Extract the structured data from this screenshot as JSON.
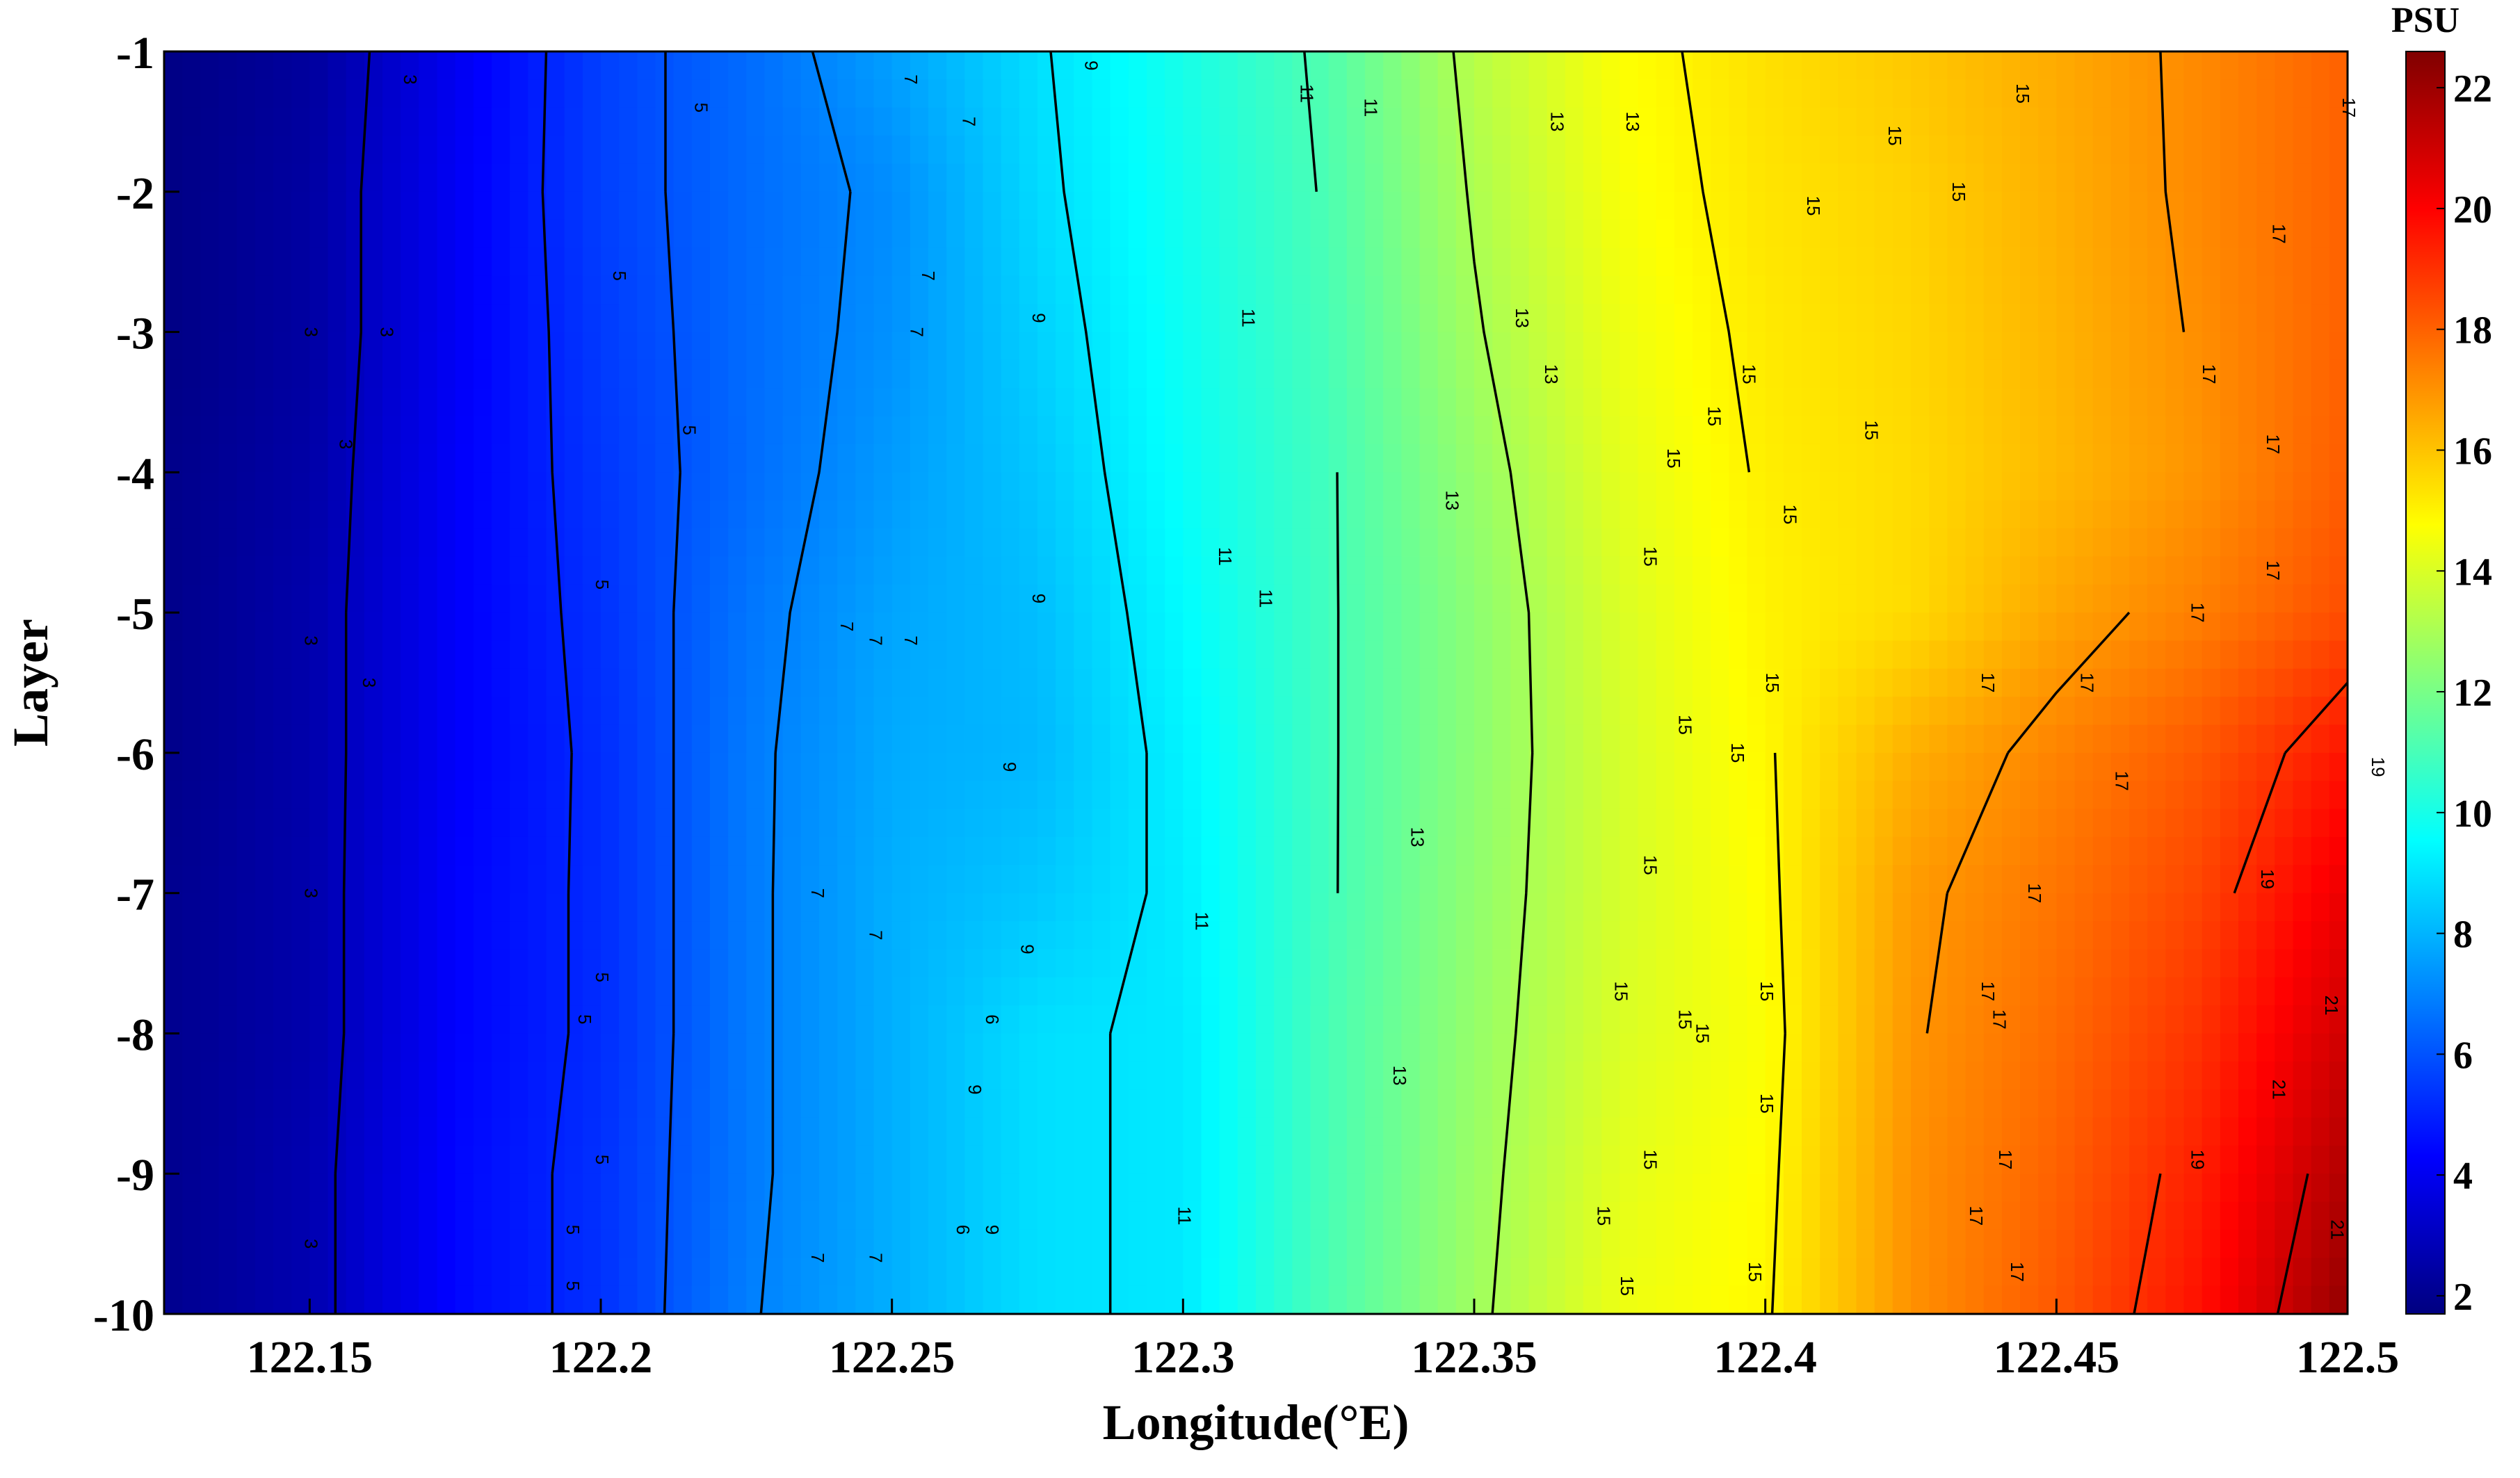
{
  "chart_data": {
    "type": "heatmap",
    "subtype": "filled contour with labeled isolines",
    "title": "",
    "xlabel": "Longitude(°E)",
    "ylabel": "Layer",
    "colorbar_label": "PSU",
    "colormap": "jet",
    "grid": false,
    "xlim": [
      122.125,
      122.5
    ],
    "ylim": [
      -10,
      -1
    ],
    "clim": [
      1.7,
      22.6
    ],
    "x_ticks": [
      122.15,
      122.2,
      122.25,
      122.3,
      122.35,
      122.4,
      122.45,
      122.5
    ],
    "x_tick_labels": [
      "122.15",
      "122.2",
      "122.25",
      "122.3",
      "122.35",
      "122.4",
      "122.45",
      "122.5"
    ],
    "y_ticks": [
      -1,
      -2,
      -3,
      -4,
      -5,
      -6,
      -7,
      -8,
      -9,
      -10
    ],
    "y_tick_labels": [
      "-1",
      "-2",
      "-3",
      "-4",
      "-5",
      "-6",
      "-7",
      "-8",
      "-9",
      "-10"
    ],
    "colorbar_ticks": [
      2,
      4,
      6,
      8,
      10,
      12,
      14,
      16,
      18,
      20,
      22
    ],
    "colorbar_tick_labels": [
      "2",
      "4",
      "6",
      "8",
      "10",
      "12",
      "14",
      "16",
      "18",
      "20",
      "22"
    ],
    "x_grid": [
      122.125,
      122.15,
      122.175,
      122.2,
      122.225,
      122.25,
      122.275,
      122.3,
      122.325,
      122.35,
      122.375,
      122.4,
      122.425,
      122.45,
      122.475,
      122.5
    ],
    "y_grid": [
      -1,
      -2,
      -3,
      -4,
      -5,
      -6,
      -7,
      -8,
      -9,
      -10
    ],
    "values": [
      [
        1.8,
        2.3,
        4.0,
        5.6,
        6.5,
        7.6,
        8.9,
        10.0,
        11.2,
        13.3,
        14.7,
        15.4,
        15.9,
        16.5,
        17.2,
        18.0
      ],
      [
        1.8,
        2.4,
        4.1,
        5.6,
        6.5,
        7.2,
        8.8,
        9.9,
        11.1,
        13.1,
        14.6,
        15.3,
        15.7,
        16.4,
        17.2,
        18.0
      ],
      [
        1.8,
        2.4,
        4.1,
        5.5,
        6.5,
        7.3,
        8.6,
        9.8,
        11.0,
        12.9,
        14.4,
        15.2,
        15.6,
        16.3,
        17.1,
        18.0
      ],
      [
        1.9,
        2.5,
        4.2,
        5.4,
        6.5,
        7.5,
        8.4,
        9.7,
        10.9,
        12.6,
        14.2,
        15.1,
        15.5,
        16.2,
        17.0,
        18.1
      ],
      [
        1.9,
        2.6,
        4.2,
        5.3,
        6.7,
        7.7,
        8.2,
        9.5,
        10.9,
        12.4,
        14.0,
        15.0,
        15.5,
        16.6,
        17.4,
        18.4
      ],
      [
        1.9,
        2.6,
        4.2,
        5.2,
        6.8,
        7.8,
        8.1,
        9.3,
        10.9,
        12.4,
        13.9,
        14.9,
        16.4,
        17.3,
        18.2,
        19.6
      ],
      [
        2.0,
        2.6,
        4.3,
        5.2,
        6.8,
        7.9,
        8.4,
        9.2,
        10.9,
        12.5,
        13.9,
        14.8,
        16.8,
        17.6,
        18.6,
        20.4
      ],
      [
        2.0,
        2.6,
        4.3,
        5.2,
        6.8,
        7.9,
        8.9,
        9.1,
        11.0,
        12.6,
        14.0,
        14.7,
        16.9,
        17.8,
        19.0,
        21.0
      ],
      [
        2.0,
        2.7,
        4.4,
        5.3,
        6.8,
        7.9,
        8.9,
        9.1,
        11.0,
        12.7,
        14.2,
        14.8,
        17.0,
        18.0,
        19.4,
        21.6
      ],
      [
        2.0,
        2.7,
        4.4,
        5.3,
        6.9,
        7.9,
        8.9,
        9.1,
        11.1,
        12.8,
        14.4,
        14.9,
        17.0,
        18.2,
        19.7,
        22.2
      ]
    ],
    "contour_levels": [
      3,
      5,
      6,
      7,
      9,
      11,
      13,
      15,
      17,
      19,
      21
    ],
    "contour_labels": [
      {
        "text": "3",
        "x": 122.167,
        "y": -1.2
      },
      {
        "text": "3",
        "x": 122.15,
        "y": -3.0
      },
      {
        "text": "3",
        "x": 122.163,
        "y": -3.0
      },
      {
        "text": "3",
        "x": 122.156,
        "y": -3.8
      },
      {
        "text": "3",
        "x": 122.15,
        "y": -5.2
      },
      {
        "text": "3",
        "x": 122.16,
        "y": -5.5
      },
      {
        "text": "3",
        "x": 122.15,
        "y": -7.0
      },
      {
        "text": "3",
        "x": 122.15,
        "y": -9.5
      },
      {
        "text": "5",
        "x": 122.217,
        "y": -1.4
      },
      {
        "text": "5",
        "x": 122.203,
        "y": -2.6
      },
      {
        "text": "5",
        "x": 122.215,
        "y": -3.7
      },
      {
        "text": "5",
        "x": 122.2,
        "y": -4.8
      },
      {
        "text": "5",
        "x": 122.2,
        "y": -7.6
      },
      {
        "text": "5",
        "x": 122.2,
        "y": -8.9
      },
      {
        "text": "5",
        "x": 122.197,
        "y": -7.9
      },
      {
        "text": "5",
        "x": 122.195,
        "y": -9.4
      },
      {
        "text": "5",
        "x": 122.195,
        "y": -9.8
      },
      {
        "text": "7",
        "x": 122.253,
        "y": -1.2
      },
      {
        "text": "7",
        "x": 122.263,
        "y": -1.5
      },
      {
        "text": "7",
        "x": 122.256,
        "y": -2.6
      },
      {
        "text": "7",
        "x": 122.254,
        "y": -3.0
      },
      {
        "text": "7",
        "x": 122.242,
        "y": -5.1
      },
      {
        "text": "7",
        "x": 122.247,
        "y": -5.2
      },
      {
        "text": "7",
        "x": 122.253,
        "y": -5.2
      },
      {
        "text": "7",
        "x": 122.237,
        "y": -7.0
      },
      {
        "text": "7",
        "x": 122.247,
        "y": -7.3
      },
      {
        "text": "7",
        "x": 122.237,
        "y": -9.6
      },
      {
        "text": "7",
        "x": 122.247,
        "y": -9.6
      },
      {
        "text": "9",
        "x": 122.284,
        "y": -1.1
      },
      {
        "text": "9",
        "x": 122.275,
        "y": -2.9
      },
      {
        "text": "9",
        "x": 122.275,
        "y": -4.9
      },
      {
        "text": "9",
        "x": 122.27,
        "y": -6.1
      },
      {
        "text": "9",
        "x": 122.273,
        "y": -7.4
      },
      {
        "text": "6",
        "x": 122.267,
        "y": -7.9
      },
      {
        "text": "9",
        "x": 122.264,
        "y": -8.4
      },
      {
        "text": "6",
        "x": 122.262,
        "y": -9.4
      },
      {
        "text": "9",
        "x": 122.267,
        "y": -9.4
      },
      {
        "text": "11",
        "x": 122.321,
        "y": -1.3
      },
      {
        "text": "11",
        "x": 122.332,
        "y": -1.4
      },
      {
        "text": "11",
        "x": 122.311,
        "y": -2.9
      },
      {
        "text": "11",
        "x": 122.307,
        "y": -4.6
      },
      {
        "text": "11",
        "x": 122.314,
        "y": -4.9
      },
      {
        "text": "11",
        "x": 122.303,
        "y": -7.2
      },
      {
        "text": "11",
        "x": 122.3,
        "y": -9.3
      },
      {
        "text": "13",
        "x": 122.364,
        "y": -1.5
      },
      {
        "text": "13",
        "x": 122.377,
        "y": -1.5
      },
      {
        "text": "13",
        "x": 122.358,
        "y": -2.9
      },
      {
        "text": "13",
        "x": 122.363,
        "y": -3.3
      },
      {
        "text": "13",
        "x": 122.346,
        "y": -4.2
      },
      {
        "text": "13",
        "x": 122.34,
        "y": -6.6
      },
      {
        "text": "13",
        "x": 122.337,
        "y": -8.3
      },
      {
        "text": "15",
        "x": 122.444,
        "y": -1.3
      },
      {
        "text": "15",
        "x": 122.422,
        "y": -1.6
      },
      {
        "text": "15",
        "x": 122.433,
        "y": -2.0
      },
      {
        "text": "15",
        "x": 122.408,
        "y": -2.1
      },
      {
        "text": "15",
        "x": 122.397,
        "y": -3.3
      },
      {
        "text": "15",
        "x": 122.391,
        "y": -3.6
      },
      {
        "text": "15",
        "x": 122.418,
        "y": -3.7
      },
      {
        "text": "15",
        "x": 122.384,
        "y": -3.9
      },
      {
        "text": "15",
        "x": 122.404,
        "y": -4.3
      },
      {
        "text": "15",
        "x": 122.38,
        "y": -4.6
      },
      {
        "text": "15",
        "x": 122.401,
        "y": -5.5
      },
      {
        "text": "15",
        "x": 122.386,
        "y": -5.8
      },
      {
        "text": "15",
        "x": 122.38,
        "y": -6.8
      },
      {
        "text": "15",
        "x": 122.395,
        "y": -6.0
      },
      {
        "text": "15",
        "x": 122.375,
        "y": -7.7
      },
      {
        "text": "15",
        "x": 122.386,
        "y": -7.9
      },
      {
        "text": "15",
        "x": 122.389,
        "y": -8.0
      },
      {
        "text": "15",
        "x": 122.4,
        "y": -7.7
      },
      {
        "text": "15",
        "x": 122.4,
        "y": -8.5
      },
      {
        "text": "15",
        "x": 122.38,
        "y": -8.9
      },
      {
        "text": "15",
        "x": 122.372,
        "y": -9.3
      },
      {
        "text": "15",
        "x": 122.376,
        "y": -9.8
      },
      {
        "text": "15",
        "x": 122.398,
        "y": -9.7
      },
      {
        "text": "17",
        "x": 122.5,
        "y": -1.4
      },
      {
        "text": "17",
        "x": 122.488,
        "y": -2.3
      },
      {
        "text": "17",
        "x": 122.476,
        "y": -3.3
      },
      {
        "text": "17",
        "x": 122.487,
        "y": -3.8
      },
      {
        "text": "17",
        "x": 122.487,
        "y": -4.7
      },
      {
        "text": "17",
        "x": 122.474,
        "y": -5.0
      },
      {
        "text": "17",
        "x": 122.455,
        "y": -5.5
      },
      {
        "text": "17",
        "x": 122.461,
        "y": -6.2
      },
      {
        "text": "17",
        "x": 122.438,
        "y": -5.5
      },
      {
        "text": "17",
        "x": 122.446,
        "y": -7.0
      },
      {
        "text": "17",
        "x": 122.438,
        "y": -7.7
      },
      {
        "text": "17",
        "x": 122.44,
        "y": -7.9
      },
      {
        "text": "17",
        "x": 122.441,
        "y": -8.9
      },
      {
        "text": "17",
        "x": 122.436,
        "y": -9.3
      },
      {
        "text": "17",
        "x": 122.443,
        "y": -9.7
      },
      {
        "text": "19",
        "x": 122.505,
        "y": -6.1
      },
      {
        "text": "19",
        "x": 122.486,
        "y": -6.9
      },
      {
        "text": "19",
        "x": 122.474,
        "y": -8.9
      },
      {
        "text": "21",
        "x": 122.497,
        "y": -7.8
      },
      {
        "text": "21",
        "x": 122.488,
        "y": -8.4
      },
      {
        "text": "21",
        "x": 122.498,
        "y": -9.4
      }
    ]
  }
}
